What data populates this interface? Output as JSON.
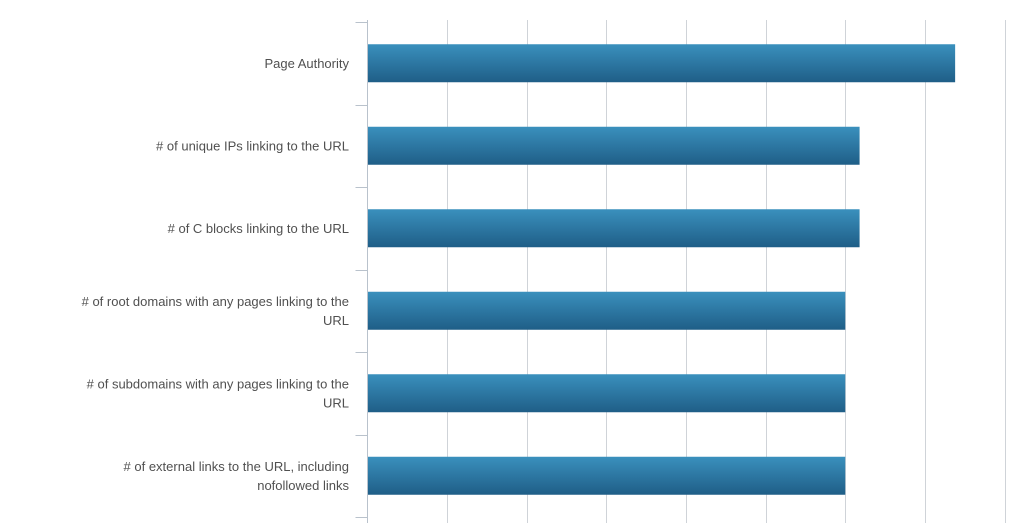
{
  "chart_data": {
    "type": "bar",
    "orientation": "horizontal",
    "categories": [
      "Page Authority",
      "# of unique IPs linking to the URL",
      "# of C blocks linking to the URL",
      "# of root domains with any pages linking to the URL",
      "# of subdomains with any pages linking to the URL",
      "# of external links to the URL, including nofollowed links"
    ],
    "category_lines": [
      [
        "Page Authority"
      ],
      [
        "# of unique IPs linking to the URL"
      ],
      [
        "# of C blocks linking to the URL"
      ],
      [
        "# of root domains with any pages linking to the",
        "URL"
      ],
      [
        "# of subdomains with any pages linking to the",
        "URL"
      ],
      [
        "# of external links to the URL, including",
        "nofollowed links"
      ]
    ],
    "values": [
      0.369,
      0.309,
      0.309,
      0.3,
      0.3,
      0.3
    ],
    "xlim": [
      0,
      0.4
    ],
    "x_gridlines": [
      0,
      0.05,
      0.1,
      0.15,
      0.2,
      0.25,
      0.3,
      0.35,
      0.4
    ],
    "title": "",
    "xlabel": "",
    "ylabel": "",
    "grid": true,
    "legend": "none",
    "colors": {
      "bar_top": "#3a90bd",
      "bar_bottom": "#1f5e87",
      "grid": "#cfd3d8",
      "axis": "#b9c2cc"
    }
  }
}
